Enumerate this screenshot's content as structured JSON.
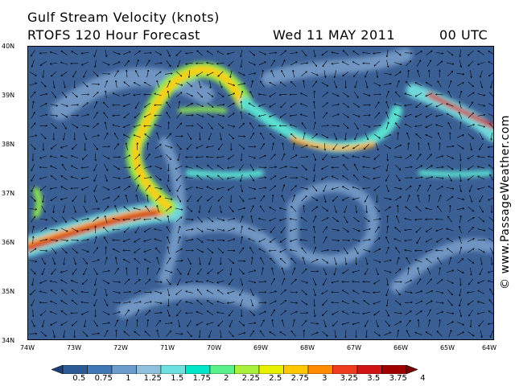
{
  "header": {
    "title": "Gulf Stream Velocity (knots)",
    "model": "RTOFS 120 Hour Forecast",
    "date": "Wed 11 MAY 2011",
    "time": "00 UTC"
  },
  "credit": "© www.PassageWeather.com",
  "map": {
    "lat_labels": [
      "40N",
      "39N",
      "38N",
      "37N",
      "36N",
      "35N",
      "34N"
    ],
    "lon_labels": [
      "74W",
      "73W",
      "72W",
      "71W",
      "70W",
      "69W",
      "68W",
      "67W",
      "66W",
      "65W",
      "64W"
    ]
  },
  "colorbar": {
    "labels": [
      "0.5",
      "0.75",
      "1",
      "1.25",
      "1.5",
      "1.75",
      "2",
      "2.25",
      "2.5",
      "2.75",
      "3",
      "3.25",
      "3.5",
      "3.75",
      "4"
    ],
    "colors": [
      "#1e3f74",
      "#2b5a94",
      "#3f78b4",
      "#6a9ccc",
      "#8fc0dc",
      "#6fe0e0",
      "#00e6c8",
      "#5af08c",
      "#a8f03c",
      "#e6f000",
      "#ffc800",
      "#ff8c00",
      "#f03c1e",
      "#d01414",
      "#a00000",
      "#780000"
    ]
  }
}
